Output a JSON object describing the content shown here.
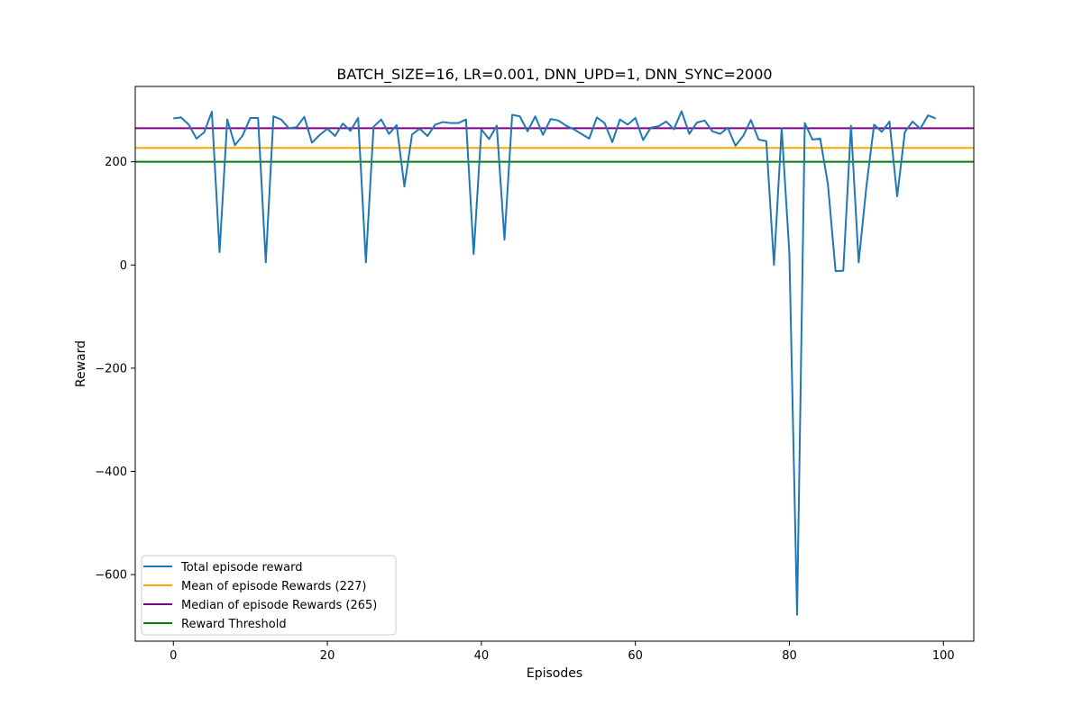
{
  "chart_data": {
    "type": "line",
    "title": "BATCH_SIZE=16, LR=0.001, DNN_UPD=1, DNN_SYNC=2000",
    "xlabel": "Episodes",
    "ylabel": "Reward",
    "xlim": [
      -4.95,
      103.95
    ],
    "ylim": [
      -729,
      346
    ],
    "xticks": [
      0,
      20,
      40,
      60,
      80,
      100
    ],
    "yticks": [
      -600,
      -400,
      -200,
      0,
      200
    ],
    "xtick_labels": [
      "0",
      "20",
      "40",
      "60",
      "80",
      "100"
    ],
    "ytick_labels": [
      "−600",
      "−400",
      "−200",
      "0",
      "200"
    ],
    "grid": false,
    "legend_position": "lower-left",
    "x": [
      0,
      1,
      2,
      3,
      4,
      5,
      6,
      7,
      8,
      9,
      10,
      11,
      12,
      13,
      14,
      15,
      16,
      17,
      18,
      19,
      20,
      21,
      22,
      23,
      24,
      25,
      26,
      27,
      28,
      29,
      30,
      31,
      32,
      33,
      34,
      35,
      36,
      37,
      38,
      39,
      40,
      41,
      42,
      43,
      44,
      45,
      46,
      47,
      48,
      49,
      50,
      51,
      52,
      53,
      54,
      55,
      56,
      57,
      58,
      59,
      60,
      61,
      62,
      63,
      64,
      65,
      66,
      67,
      68,
      69,
      70,
      71,
      72,
      73,
      74,
      75,
      76,
      77,
      78,
      79,
      80,
      81,
      82,
      83,
      84,
      85,
      86,
      87,
      88,
      89,
      90,
      91,
      92,
      93,
      94,
      95,
      96,
      97,
      98,
      99
    ],
    "series": [
      {
        "name": "Total episode reward",
        "color": "#1f77b4",
        "kind": "line",
        "values": [
          284,
          286,
          272,
          245,
          257,
          297,
          25,
          282,
          232,
          251,
          285,
          285,
          5,
          288,
          282,
          265,
          267,
          287,
          237,
          252,
          264,
          250,
          274,
          260,
          285,
          5,
          268,
          282,
          254,
          271,
          152,
          253,
          264,
          250,
          272,
          277,
          275,
          275,
          282,
          21,
          263,
          244,
          270,
          49,
          291,
          288,
          259,
          288,
          252,
          283,
          280,
          270,
          263,
          254,
          245,
          286,
          275,
          238,
          282,
          272,
          285,
          242,
          266,
          269,
          278,
          263,
          298,
          254,
          276,
          280,
          259,
          254,
          266,
          231,
          250,
          281,
          243,
          240,
          0,
          265,
          22,
          -678,
          275,
          243,
          245,
          157,
          -12,
          -11,
          270,
          5,
          152,
          272,
          258,
          278,
          133,
          258,
          278,
          264,
          290,
          284
        ]
      },
      {
        "name": "Mean of episode Rewards (227)",
        "color": "#ffa500",
        "kind": "hline",
        "value": 227
      },
      {
        "name": "Median of episode Rewards (265)",
        "color": "#800080",
        "kind": "hline",
        "value": 265
      },
      {
        "name": "Reward Threshold",
        "color": "#008000",
        "kind": "hline",
        "value": 200
      }
    ]
  }
}
